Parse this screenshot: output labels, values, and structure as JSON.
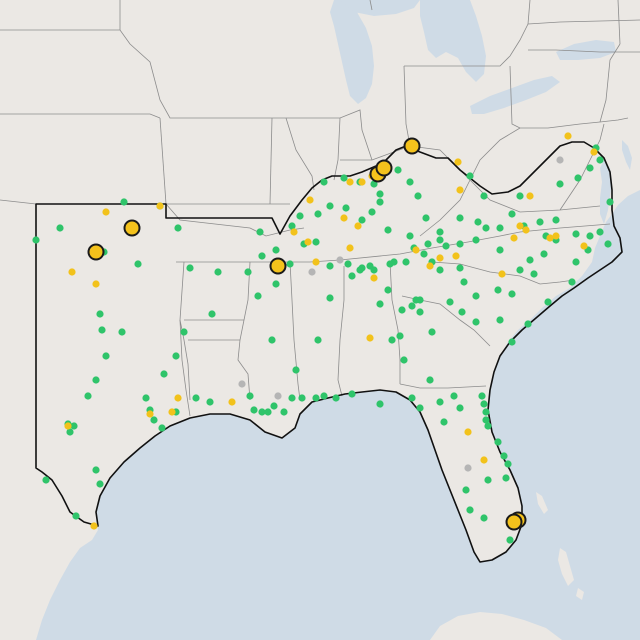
{
  "map": {
    "colors": {
      "water": "#cfdbe6",
      "land": "#ebe8e4",
      "state_border": "#8c8c8c",
      "region_border": "#111111",
      "marker_green": "#2fc46a",
      "marker_yellow": "#f2c21b",
      "marker_grey": "#b5b5b5",
      "marker_large_fill": "#f4c21c",
      "marker_large_stroke": "#1a1a1a"
    },
    "marker_categories": [
      "green",
      "yellow",
      "grey",
      "large-yellow"
    ],
    "marker_counts": {
      "green": 170,
      "yellow": 40,
      "grey": 6,
      "large-yellow": 8
    }
  }
}
